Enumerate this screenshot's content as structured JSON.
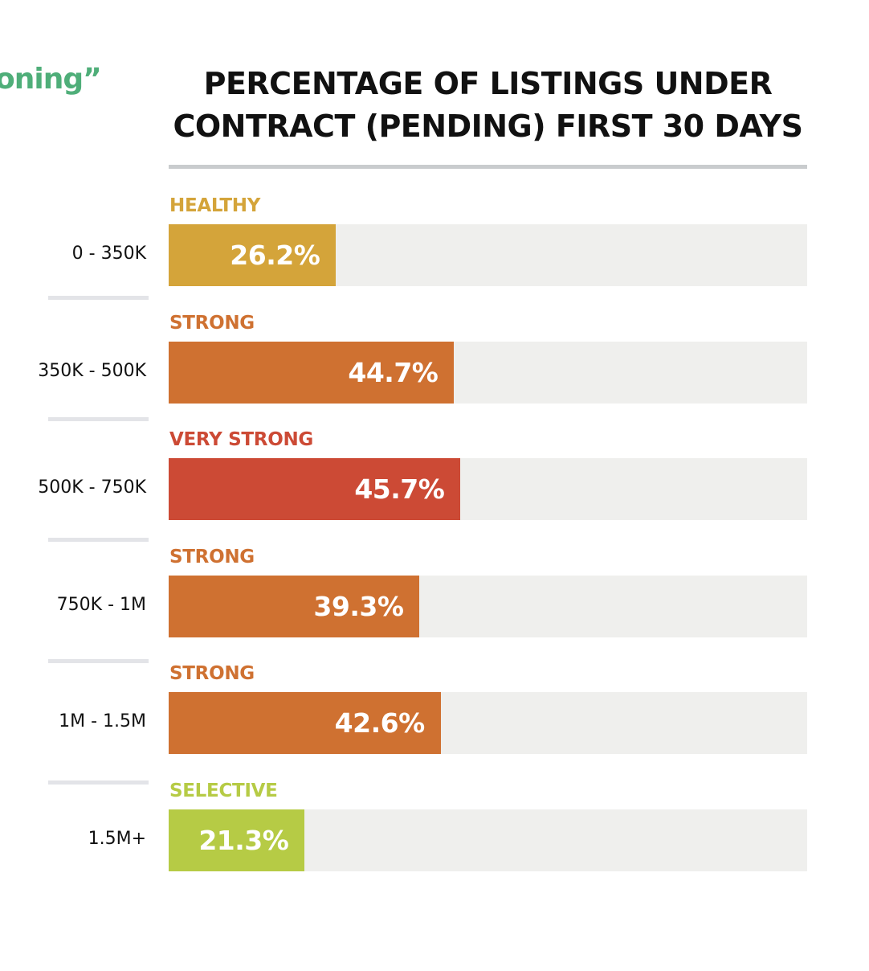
{
  "fragment_text": "oning”",
  "chart_data": {
    "type": "bar",
    "orientation": "horizontal",
    "title": "PERCENTAGE OF LISTINGS UNDER CONTRACT (PENDING) FIRST 30 DAYS",
    "title_lines": [
      "PERCENTAGE OF LISTINGS UNDER",
      "CONTRACT (PENDING) FIRST 30 DAYS"
    ],
    "xlim": [
      0,
      100
    ],
    "categories": [
      "0 - 350K",
      "350K - 500K",
      "500K - 750K",
      "750K - 1M",
      "1M - 1.5M",
      "1.5M+"
    ],
    "values": [
      26.2,
      44.7,
      45.7,
      39.3,
      42.6,
      21.3
    ],
    "value_labels": [
      "26.2%",
      "44.7%",
      "45.7%",
      "39.3%",
      "42.6%",
      "21.3%"
    ],
    "status_labels": [
      "HEALTHY",
      "STRONG",
      "VERY STRONG",
      "STRONG",
      "STRONG",
      "SELECTIVE"
    ],
    "colors": [
      "#d4a43a",
      "#cf7131",
      "#cc4a35",
      "#cf7131",
      "#cf7131",
      "#b6cb45"
    ],
    "track_color": "#efefed"
  }
}
